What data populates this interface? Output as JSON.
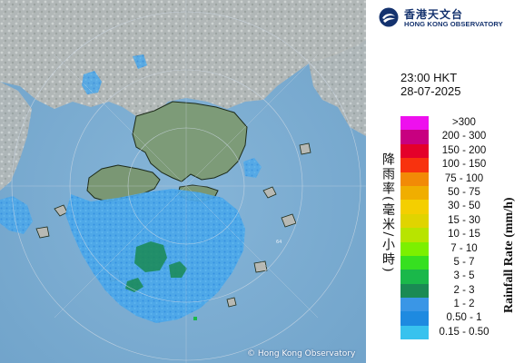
{
  "header": {
    "org_name_zh": "香港天文台",
    "org_name_en": "HONG KONG OBSERVATORY",
    "logo_icon": "hko-logo-icon"
  },
  "observation": {
    "time": "23:00 HKT",
    "date": "28-07-2025"
  },
  "legend": {
    "title_zh": "降雨率(毫米/小時)",
    "title_en": "Rainfall Rate (mm/h)",
    "items": [
      {
        "label": ">300",
        "color": "#ee10ee"
      },
      {
        "label": "200 - 300",
        "color": "#c80080"
      },
      {
        "label": "150 - 200",
        "color": "#e4002a"
      },
      {
        "label": "100 - 150",
        "color": "#f8320e"
      },
      {
        "label": "75 - 100",
        "color": "#f28a06"
      },
      {
        "label": "50 - 75",
        "color": "#f0ae00"
      },
      {
        "label": "30 - 50",
        "color": "#f4cf00"
      },
      {
        "label": "15 - 30",
        "color": "#e0d400"
      },
      {
        "label": "10 - 15",
        "color": "#b8e400"
      },
      {
        "label": "7 - 10",
        "color": "#7cf000"
      },
      {
        "label": "5 - 7",
        "color": "#36e020"
      },
      {
        "label": "3 - 5",
        "color": "#1ab84a"
      },
      {
        "label": "2 - 3",
        "color": "#1a8a54"
      },
      {
        "label": "1 - 2",
        "color": "#3a96e6"
      },
      {
        "label": "0.50 - 1",
        "color": "#1e8ae0"
      },
      {
        "label": "0.15 - 0.50",
        "color": "#38c2ee"
      }
    ]
  },
  "map": {
    "range_ring_label": "64",
    "copyright": "© Hong Kong Observatory"
  }
}
